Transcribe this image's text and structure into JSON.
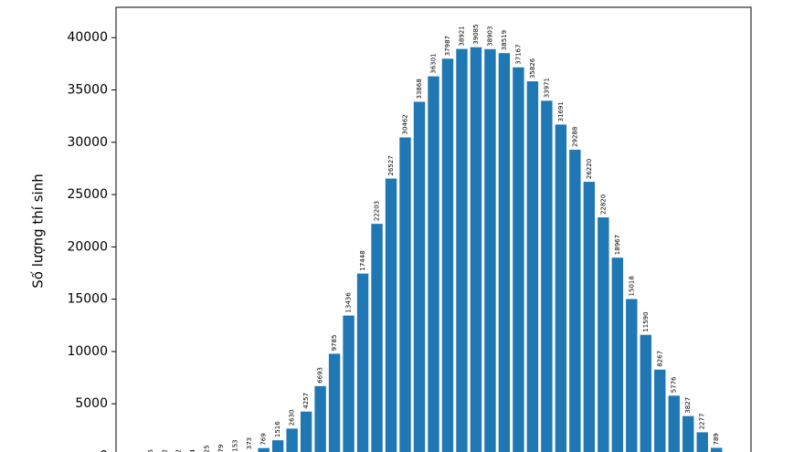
{
  "chart_data": {
    "type": "bar",
    "y_label": "Số lượng thí sinh",
    "categories": [
      null,
      null,
      null,
      null,
      null,
      null,
      null,
      null,
      null,
      null,
      null,
      null,
      null,
      null,
      null,
      null,
      null,
      null,
      null,
      null,
      null,
      null,
      null,
      null,
      null,
      null,
      null,
      null,
      null,
      null,
      null,
      null,
      null,
      null,
      null,
      null,
      null,
      null,
      null,
      null,
      null
    ],
    "values": [
      5,
      2,
      2,
      4,
      25,
      79,
      153,
      373,
      769,
      1516,
      2630,
      4257,
      6693,
      9785,
      13436,
      17448,
      22203,
      26527,
      30462,
      33868,
      36301,
      37987,
      38921,
      39085,
      38903,
      38519,
      37167,
      35826,
      33971,
      31691,
      29288,
      26220,
      22820,
      18967,
      15018,
      11590,
      8267,
      5776,
      3827,
      2277,
      789
    ],
    "color": "#1f77b4",
    "ylim": [
      0,
      42900
    ],
    "yticks": [
      0,
      5000,
      10000,
      15000,
      20000,
      25000,
      30000,
      35000,
      40000
    ],
    "grid": false
  }
}
